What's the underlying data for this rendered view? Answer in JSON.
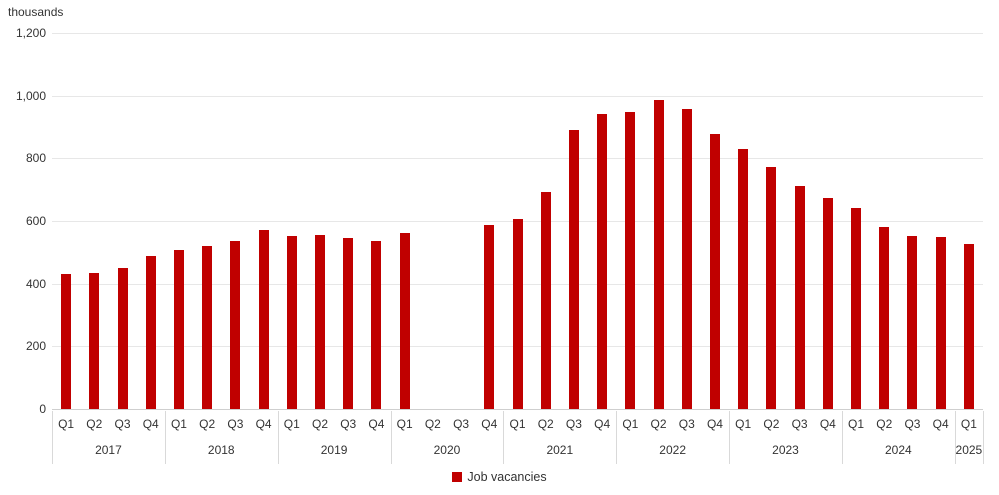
{
  "units_label": "thousands",
  "legend": {
    "label": "Job vacancies",
    "color": "#c00000"
  },
  "colors": {
    "bar": "#c00000",
    "gridline": "#e7e7e7",
    "axis_line": "#cfcfcf",
    "separator": "#d9d9d9",
    "text": "#333333"
  },
  "chart_data": {
    "type": "bar",
    "title": "",
    "ylabel": "thousands",
    "xlabel": "",
    "ylim": [
      0,
      1200
    ],
    "y_ticks": [
      0,
      200,
      400,
      600,
      800,
      1000,
      1200
    ],
    "y_tick_labels": [
      "0",
      "200",
      "400",
      "600",
      "800",
      "1,000",
      "1,200"
    ],
    "grid": true,
    "legend_position": "bottom-center",
    "missing_data_note_quarters": [
      "Q2 2020",
      "Q3 2020"
    ],
    "series_name": "Job vacancies",
    "years": [
      {
        "year": "2017",
        "quarters": [
          "Q1",
          "Q2",
          "Q3",
          "Q4"
        ],
        "values": [
          430,
          435,
          450,
          487
        ]
      },
      {
        "year": "2018",
        "quarters": [
          "Q1",
          "Q2",
          "Q3",
          "Q4"
        ],
        "values": [
          508,
          520,
          536,
          571
        ]
      },
      {
        "year": "2019",
        "quarters": [
          "Q1",
          "Q2",
          "Q3",
          "Q4"
        ],
        "values": [
          553,
          554,
          546,
          535
        ]
      },
      {
        "year": "2020",
        "quarters": [
          "Q1",
          "Q2",
          "Q3",
          "Q4"
        ],
        "values": [
          562,
          null,
          null,
          587
        ]
      },
      {
        "year": "2021",
        "quarters": [
          "Q1",
          "Q2",
          "Q3",
          "Q4"
        ],
        "values": [
          606,
          694,
          890,
          941
        ]
      },
      {
        "year": "2022",
        "quarters": [
          "Q1",
          "Q2",
          "Q3",
          "Q4"
        ],
        "values": [
          947,
          986,
          959,
          879
        ]
      },
      {
        "year": "2023",
        "quarters": [
          "Q1",
          "Q2",
          "Q3",
          "Q4"
        ],
        "values": [
          829,
          771,
          711,
          674
        ]
      },
      {
        "year": "2024",
        "quarters": [
          "Q1",
          "Q2",
          "Q3",
          "Q4"
        ],
        "values": [
          641,
          581,
          553,
          549
        ]
      },
      {
        "year": "2025",
        "quarters": [
          "Q1"
        ],
        "values": [
          526
        ]
      }
    ]
  }
}
